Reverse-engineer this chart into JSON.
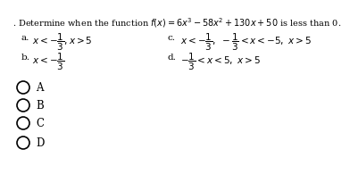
{
  "title": ". Determine when the function $f(x) = 6x^3 - 58x^2 + 130x + 50$ is less than 0.",
  "opt_a_label": "a.",
  "opt_a_text": "$x < -\\dfrac{1}{3}, x > 5$",
  "opt_b_label": "b.",
  "opt_b_text": "$x < -\\dfrac{1}{3}$",
  "opt_c_label": "c.",
  "opt_c_text": "$x < -\\dfrac{1}{3},\\ -\\dfrac{1}{3} < x < -5,\\ x > 5$",
  "opt_d_label": "d.",
  "opt_d_text": "$-\\dfrac{1}{3} < x < 5,\\ x > 5$",
  "choices": [
    "A",
    "B",
    "C",
    "D"
  ],
  "bg_color": "#ffffff",
  "text_color": "#000000",
  "title_fontsize": 7.0,
  "option_fontsize": 7.5,
  "choice_fontsize": 8.5
}
